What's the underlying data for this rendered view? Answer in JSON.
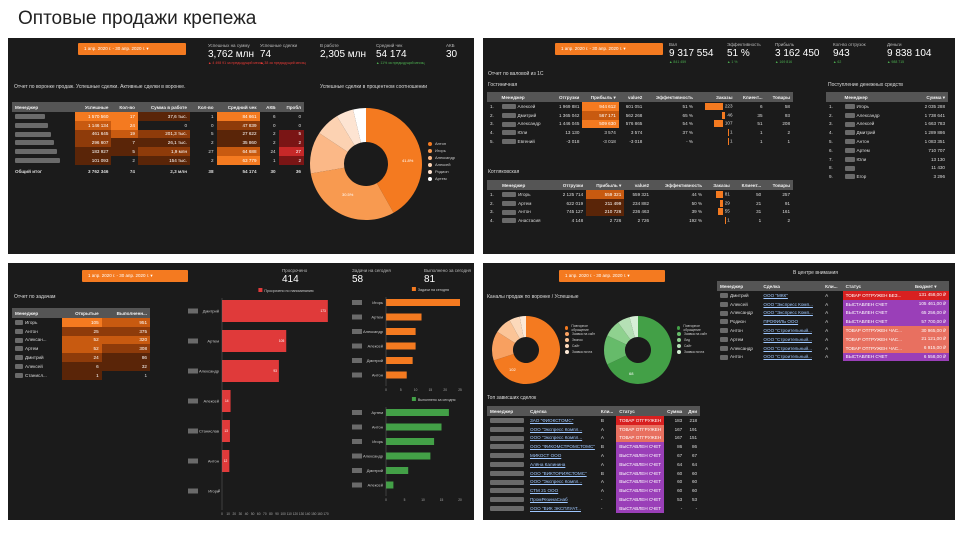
{
  "title": "Оптовые продажи крепежа",
  "colors": {
    "accent": "#f47a20",
    "panel": "#1b1b1b",
    "red": "#c62828",
    "green": "#43a047",
    "purple": "#9a3fb8"
  },
  "p1": {
    "date": "1 апр. 2020 г. - 30 апр. 2020 г. ▾",
    "kpis": [
      {
        "label": "Успешных на сумму",
        "value": "3,762 млн",
        "delta": "▲ 4 498 91 за предыдущий месяц",
        "dir": "dn"
      },
      {
        "label": "Успешные сделки",
        "value": "74",
        "delta": "▲ 38 за предыдущий месяц",
        "dir": "dn"
      },
      {
        "label": "В работе",
        "value": "2,305 млн",
        "delta": "",
        "dir": "up"
      },
      {
        "label": "Средний чек",
        "value": "54 174",
        "delta": "▲ 11% за предыдущий месяц",
        "dir": "up"
      },
      {
        "label": "АКБ",
        "value": "30",
        "delta": "",
        "dir": "up"
      }
    ],
    "report_title": "Отчет по воронке продаж. Успешные сделки. Активные сделки в воронке.",
    "donut_title": "Успешные сделки в процентном соотношении",
    "headers": [
      "Менеджер",
      "Успешные",
      "Кол-во",
      "Сумма в работе",
      "Кол-во",
      "Средний чек",
      "АКБ",
      "Пробл"
    ],
    "rows": [
      [
        "",
        "1 570 560",
        "17",
        "37,6 тыс.",
        "1",
        "84 661",
        "6",
        "0"
      ],
      [
        "",
        "1 146 134",
        "24",
        "0",
        "0",
        "47 839",
        "0",
        "0"
      ],
      [
        "",
        "461 645",
        "19",
        "201,3 тыс.",
        "5",
        "27 622",
        "2",
        "5"
      ],
      [
        "",
        "296 607",
        "7",
        "26,1 тыс.",
        "2",
        "35 860",
        "2",
        "2"
      ],
      [
        "",
        "183 927",
        "5",
        "1,9 млн",
        "27",
        "64 688",
        "24",
        "27"
      ],
      [
        "",
        "101 093",
        "2",
        "154 тыс.",
        "2",
        "63 779",
        "1",
        "2"
      ]
    ],
    "total": [
      "Общий итог",
      "3 762 346",
      "74",
      "2,3 млн",
      "38",
      "54 174",
      "30",
      "36"
    ],
    "legend": [
      "Антон",
      "Игорь",
      "Александр",
      "Алексей",
      "Родион",
      "Артем"
    ],
    "donut_pct": [
      "41.8%",
      "30.5%"
    ]
  },
  "p2": {
    "date": "1 апр. 2020 г. - 30 апр. 2020 г. ▾",
    "kpis": [
      {
        "label": "Вал",
        "value": "9 317 554",
        "delta": "▲ 841 459"
      },
      {
        "label": "Эффективность",
        "value": "51 %",
        "delta": "▲ 1 %"
      },
      {
        "label": "Прибыль",
        "value": "3 162 450",
        "delta": "▲ 169 816"
      },
      {
        "label": "Кол-во отгрузок",
        "value": "943",
        "delta": "▲ 62"
      },
      {
        "label": "Деньги",
        "value": "9 838 104",
        "delta": "▲ 988 715"
      }
    ],
    "report_title": "Отчет по валовой из 1С",
    "g1": "Гостиничная",
    "g2": "Котляковская",
    "headers": [
      "Менеджер",
      "Отгрузки",
      "Прибыль ▾",
      "value2",
      "Эффективность",
      "Заказы",
      "Клиент...",
      "Товары"
    ],
    "rows1": [
      [
        "1.",
        "Алексей",
        "1 969 881",
        "944 612",
        "601 051",
        "51 %",
        "223",
        "6",
        "58"
      ],
      [
        "2.",
        "Дмитрий",
        "1 365 042",
        "567 171",
        "562 268",
        "65 %",
        "46",
        "35",
        "93"
      ],
      [
        "3.",
        "Александр",
        "1 446 045",
        "509 630",
        "576 865",
        "54 %",
        "107",
        "51",
        "208"
      ],
      [
        "4.",
        "Юли",
        "13 130",
        "3 574",
        "3 574",
        "37 %",
        "1",
        "1",
        "2"
      ],
      [
        "5.",
        "Евгений",
        "-3 018",
        "-3 018",
        "-3 018",
        "- %",
        "1",
        "1",
        "1"
      ]
    ],
    "rows2": [
      [
        "1.",
        "Игорь",
        "2 125 714",
        "559 321",
        "559 321",
        "44 %",
        "81",
        "50",
        "257"
      ],
      [
        "2.",
        "Артем",
        "622 019",
        "211 499",
        "234 882",
        "50 %",
        "29",
        "21",
        "91"
      ],
      [
        "3.",
        "Антон",
        "745 127",
        "210 726",
        "236 463",
        "39 %",
        "55",
        "31",
        "161"
      ],
      [
        "4.",
        "Анастасия",
        "4 148",
        "2 726",
        "2 726",
        "192 %",
        "1",
        "1",
        "2"
      ]
    ],
    "money_title": "Поступление денежных средств",
    "money_headers": [
      "Менеджер",
      "Сумма ▾"
    ],
    "money": [
      [
        "1.",
        "Игорь",
        "2 035 288"
      ],
      [
        "2.",
        "Александр",
        "1 738 641"
      ],
      [
        "3.",
        "Алексей",
        "1 663 783"
      ],
      [
        "4.",
        "Дмитрий",
        "1 289 886"
      ],
      [
        "5.",
        "Антон",
        "1 083 351"
      ],
      [
        "6.",
        "Артем",
        "710 707"
      ],
      [
        "7.",
        "Юли",
        "13 130"
      ],
      [
        "8.",
        "",
        "11 430"
      ],
      [
        "9.",
        "Егор",
        "3 296"
      ]
    ]
  },
  "p3": {
    "date": "1 апр. 2020 г. - 30 апр. 2020 г. ▾",
    "kpis": [
      {
        "label": "Просрочено",
        "value": "414"
      },
      {
        "label": "Задачи на сегодня",
        "value": "58"
      },
      {
        "label": "Выполнено за сегодня",
        "value": "81"
      }
    ],
    "report_title": "Отчет по задачам",
    "headers": [
      "Менеджер",
      "Открытые",
      "Выполненн..."
    ],
    "rows": [
      [
        "Игорь",
        "105",
        "951"
      ],
      [
        "Антон",
        "25",
        "375"
      ],
      [
        "Алексан...",
        "52",
        "320"
      ],
      [
        "Артем",
        "52",
        "308"
      ],
      [
        "Дмитрий",
        "24",
        "86"
      ],
      [
        "Алексей",
        "6",
        "32"
      ],
      [
        "Станисл...",
        "1",
        "1"
      ]
    ],
    "legend_overdue": "Просрочено по напоминанию",
    "legend_today": "Задачи на сегодня",
    "legend_done": "Выполнено за сегодня",
    "overdue_names": [
      "Дмитрий",
      "Артем",
      "Александр",
      "Алексей",
      "Станислав",
      "Антон",
      "Игорь"
    ],
    "overdue_vals": [
      173,
      105,
      93,
      14,
      13,
      12,
      0
    ],
    "overdue_ticks": [
      "0",
      "10",
      "20",
      "30",
      "40",
      "50",
      "60",
      "70",
      "80",
      "90",
      "100",
      "110",
      "120",
      "130",
      "140",
      "150",
      "160",
      "170"
    ],
    "today_names": [
      "Игорь",
      "Артем",
      "Александр",
      "Алексей",
      "Дмитрий",
      "Антон"
    ],
    "today_vals": [
      25,
      12,
      10,
      10,
      9,
      7
    ],
    "today_ticks": [
      "0",
      "5",
      "10",
      "15",
      "20",
      "25"
    ],
    "done_names": [
      "Артем",
      "Антон",
      "Игорь",
      "Александр",
      "Дмитрий",
      "Алексей"
    ],
    "done_vals": [
      17,
      15,
      13,
      12,
      6,
      2
    ],
    "done_ticks": [
      "0",
      "5",
      "10",
      "15",
      "20"
    ]
  },
  "p4": {
    "date": "1 апр. 2020 г. - 30 апр. 2020 г. ▾",
    "funnel_title": "Каналы продаж по воронке / Успешные",
    "donut1_val": "102",
    "donut2_val": "68",
    "legend1": [
      "Повторное обращение",
      "Заявка на сайт",
      "Звонок",
      "Сайт",
      "Заявка почта"
    ],
    "legend2": [
      "Повторное обращение",
      "Заявка на сайт",
      "Лид",
      "Сайт",
      "Заявка почта"
    ],
    "attention_title": "В центре внимания",
    "att_headers": [
      "Менеджер",
      "Сделка",
      "Кли...",
      "Статус",
      "Бюджет ▾"
    ],
    "att_rows": [
      [
        "Дмитрий",
        "ООО \"МКК\"",
        "А",
        "ТОВАР ОТГРУЖЕН БЕЗ...",
        "131 458,00 ₽",
        "rd"
      ],
      [
        "Алексей",
        "ООО \"Экспресс Комп...",
        "А",
        "ВЫСТАВЛЕН СЧЕТ",
        "105 461,00 ₽",
        "pr"
      ],
      [
        "Александр",
        "ООО \"Экспресс Комп...",
        "А",
        "ВЫСТАВЛЕН СЧЕТ",
        "65 256,00 ₽",
        "pr"
      ],
      [
        "Родион",
        "ПРОФИЛЬ ООО",
        "А",
        "ВЫСТАВЛЕН СЧЕТ",
        "57 700,00 ₽",
        "pr"
      ],
      [
        "Антон",
        "ООО \"Строительный...",
        "А",
        "ТОВАР ОТГРУЖЕН ЧАС...",
        "30 965,00 ₽",
        "pk"
      ],
      [
        "Артем",
        "ООО \"Строительный...",
        "А",
        "ТОВАР ОТГРУЖЕН ЧАС...",
        "21 121,00 ₽",
        "pk"
      ],
      [
        "Александр",
        "ООО \"Строительный...",
        "А",
        "ТОВАР ОТГРУЖЕН ЧАС...",
        "6 915,00 ₽",
        "pk"
      ],
      [
        "Антон",
        "ООО \"Строительный...",
        "А",
        "ВЫСТАВЛЕН СЧЕТ",
        "6 558,00 ₽",
        "pr"
      ]
    ],
    "top_title": "Топ зависших сделок",
    "top_headers": [
      "Менеджер",
      "Сделка",
      "Кли...",
      "Статус",
      "Сумма",
      "Дни"
    ],
    "top_rows": [
      [
        "",
        "ЗАО \"ФИОКСТОМС\"",
        "В",
        "ТОВАР ОТГРУЖЕН",
        "183",
        "218",
        "rd"
      ],
      [
        "",
        "ООО \"Экспресс Компл...",
        "А",
        "ТОВАР ОТГРУЖЕН",
        "167",
        "191",
        "pk"
      ],
      [
        "",
        "ООО \"Экспресс Компл...",
        "А",
        "ТОВАР ОТГРУЖЕН",
        "167",
        "151",
        "pk"
      ],
      [
        "",
        "ООО \"ФИКОМСТРОМСТОМС\"",
        "В",
        "ВЫСТАВЛЕН СЧЕТ",
        "86",
        "86",
        "pr"
      ],
      [
        "",
        "МИКОСТ ООО",
        "А",
        "ВЫСТАВЛЕН СЧЕТ",
        "67",
        "67",
        "pr"
      ],
      [
        "",
        "Алёна Калинина",
        "А",
        "ВЫСТАВЛЕН СЧЕТ",
        "64",
        "64",
        "pr"
      ],
      [
        "",
        "ООО \"ВИКТОРИЯСТОМС\"",
        "В",
        "ВЫСТАВЛЕН СЧЕТ",
        "60",
        "60",
        "pr"
      ],
      [
        "",
        "ООО \"Экспресс Компл...",
        "А",
        "ВЫСТАВЛЕН СЧЕТ",
        "60",
        "60",
        "pr"
      ],
      [
        "",
        "СТМ 21 ООО",
        "А",
        "ВЫСТАВЛЕН СЧЕТ",
        "60",
        "60",
        "pr"
      ],
      [
        "",
        "ПромРезинаСнаб",
        "-",
        "ВЫСТАВЛЕН СЧЕТ",
        "53",
        "53",
        "pr"
      ],
      [
        "",
        "ООО \"ВИК ЭКСПЛУАТ...",
        "-",
        "ВЫСТАВЛЕН СЧЕТ",
        "-",
        "-",
        "pr"
      ]
    ]
  }
}
